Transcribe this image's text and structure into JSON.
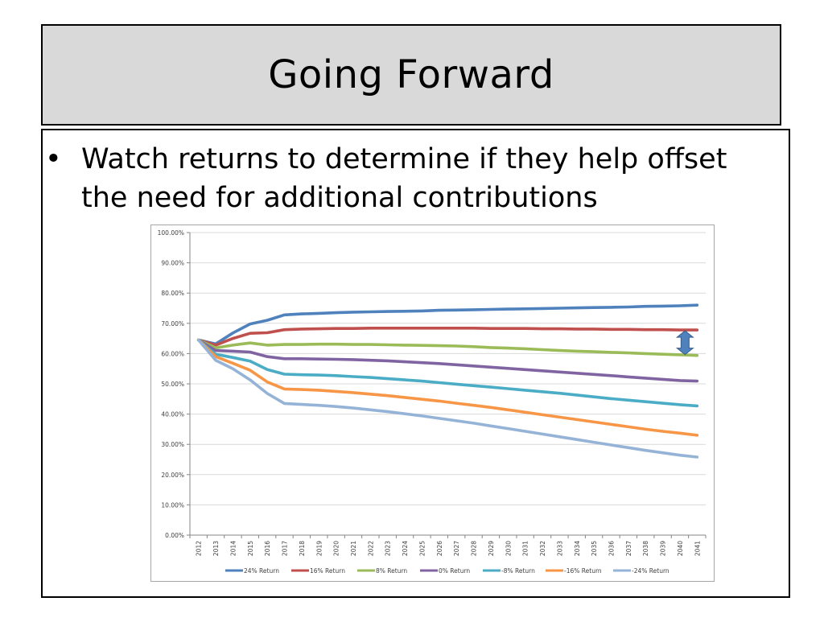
{
  "slide": {
    "title": "Going Forward",
    "bullet_char": "•",
    "bullet": "Watch returns to determine if they help offset the need for additional contributions"
  },
  "chart_data": {
    "type": "line",
    "title": "",
    "xlabel": "",
    "ylabel": "",
    "ylim": [
      0,
      100
    ],
    "y_ticks": [
      "0.00%",
      "10.00%",
      "20.00%",
      "30.00%",
      "40.00%",
      "50.00%",
      "60.00%",
      "70.00%",
      "80.00%",
      "90.00%",
      "100.00%"
    ],
    "grid": true,
    "legend_position": "bottom",
    "categories": [
      "2012",
      "2013",
      "2014",
      "2015",
      "2016",
      "2017",
      "2018",
      "2019",
      "2020",
      "2021",
      "2022",
      "2023",
      "2024",
      "2025",
      "2026",
      "2027",
      "2028",
      "2029",
      "2030",
      "2031",
      "2032",
      "2033",
      "2034",
      "2035",
      "2036",
      "2037",
      "2038",
      "2039",
      "2040",
      "2041"
    ],
    "series": [
      {
        "name": "24% Return",
        "color": "#4f81bd",
        "values": [
          64.5,
          63.2,
          66.8,
          69.8,
          71.0,
          72.8,
          73.1,
          73.3,
          73.5,
          73.7,
          73.8,
          73.9,
          74.0,
          74.1,
          74.3,
          74.4,
          74.5,
          74.6,
          74.7,
          74.8,
          74.9,
          75.0,
          75.1,
          75.2,
          75.3,
          75.4,
          75.6,
          75.7,
          75.8,
          76.0
        ]
      },
      {
        "name": "16% Return",
        "color": "#c0504d",
        "values": [
          64.5,
          62.8,
          65.0,
          66.7,
          66.9,
          67.9,
          68.1,
          68.2,
          68.3,
          68.3,
          68.4,
          68.4,
          68.4,
          68.4,
          68.4,
          68.4,
          68.4,
          68.3,
          68.3,
          68.3,
          68.2,
          68.2,
          68.1,
          68.1,
          68.0,
          68.0,
          67.9,
          67.9,
          67.8,
          67.8
        ]
      },
      {
        "name": "8% Return",
        "color": "#9bbb59",
        "values": [
          64.5,
          61.9,
          62.8,
          63.5,
          62.8,
          63.0,
          63.0,
          63.1,
          63.1,
          63.0,
          63.0,
          62.9,
          62.8,
          62.7,
          62.6,
          62.5,
          62.3,
          62.0,
          61.8,
          61.6,
          61.3,
          61.0,
          60.8,
          60.6,
          60.4,
          60.2,
          60.0,
          59.8,
          59.6,
          59.4
        ]
      },
      {
        "name": "0% Return",
        "color": "#8064a2",
        "values": [
          64.5,
          61.0,
          60.8,
          60.5,
          59.0,
          58.3,
          58.3,
          58.2,
          58.1,
          58.0,
          57.8,
          57.6,
          57.3,
          57.0,
          56.7,
          56.3,
          55.9,
          55.5,
          55.1,
          54.7,
          54.3,
          53.9,
          53.5,
          53.1,
          52.7,
          52.3,
          51.9,
          51.5,
          51.1,
          50.9
        ]
      },
      {
        "name": "-8% Return",
        "color": "#4bacc6",
        "values": [
          64.5,
          59.8,
          58.7,
          57.5,
          54.7,
          53.2,
          53.0,
          52.9,
          52.7,
          52.4,
          52.1,
          51.7,
          51.3,
          50.9,
          50.4,
          49.9,
          49.4,
          48.9,
          48.4,
          47.9,
          47.4,
          46.9,
          46.3,
          45.7,
          45.1,
          44.6,
          44.1,
          43.6,
          43.1,
          42.7
        ]
      },
      {
        "name": "-16% Return",
        "color": "#f79646",
        "values": [
          64.5,
          59.0,
          56.8,
          54.5,
          50.6,
          48.3,
          48.1,
          47.9,
          47.5,
          47.1,
          46.6,
          46.1,
          45.5,
          44.9,
          44.3,
          43.6,
          42.9,
          42.2,
          41.4,
          40.6,
          39.8,
          39.0,
          38.2,
          37.4,
          36.6,
          35.8,
          35.0,
          34.3,
          33.7,
          33.0
        ]
      },
      {
        "name": "-24% Return",
        "color": "#95b3d7",
        "values": [
          64.5,
          57.8,
          55.0,
          51.3,
          46.8,
          43.5,
          43.2,
          42.9,
          42.5,
          42.0,
          41.4,
          40.8,
          40.1,
          39.4,
          38.6,
          37.8,
          37.0,
          36.1,
          35.2,
          34.3,
          33.4,
          32.5,
          31.6,
          30.7,
          29.8,
          28.9,
          28.0,
          27.2,
          26.4,
          25.8
        ]
      }
    ]
  }
}
